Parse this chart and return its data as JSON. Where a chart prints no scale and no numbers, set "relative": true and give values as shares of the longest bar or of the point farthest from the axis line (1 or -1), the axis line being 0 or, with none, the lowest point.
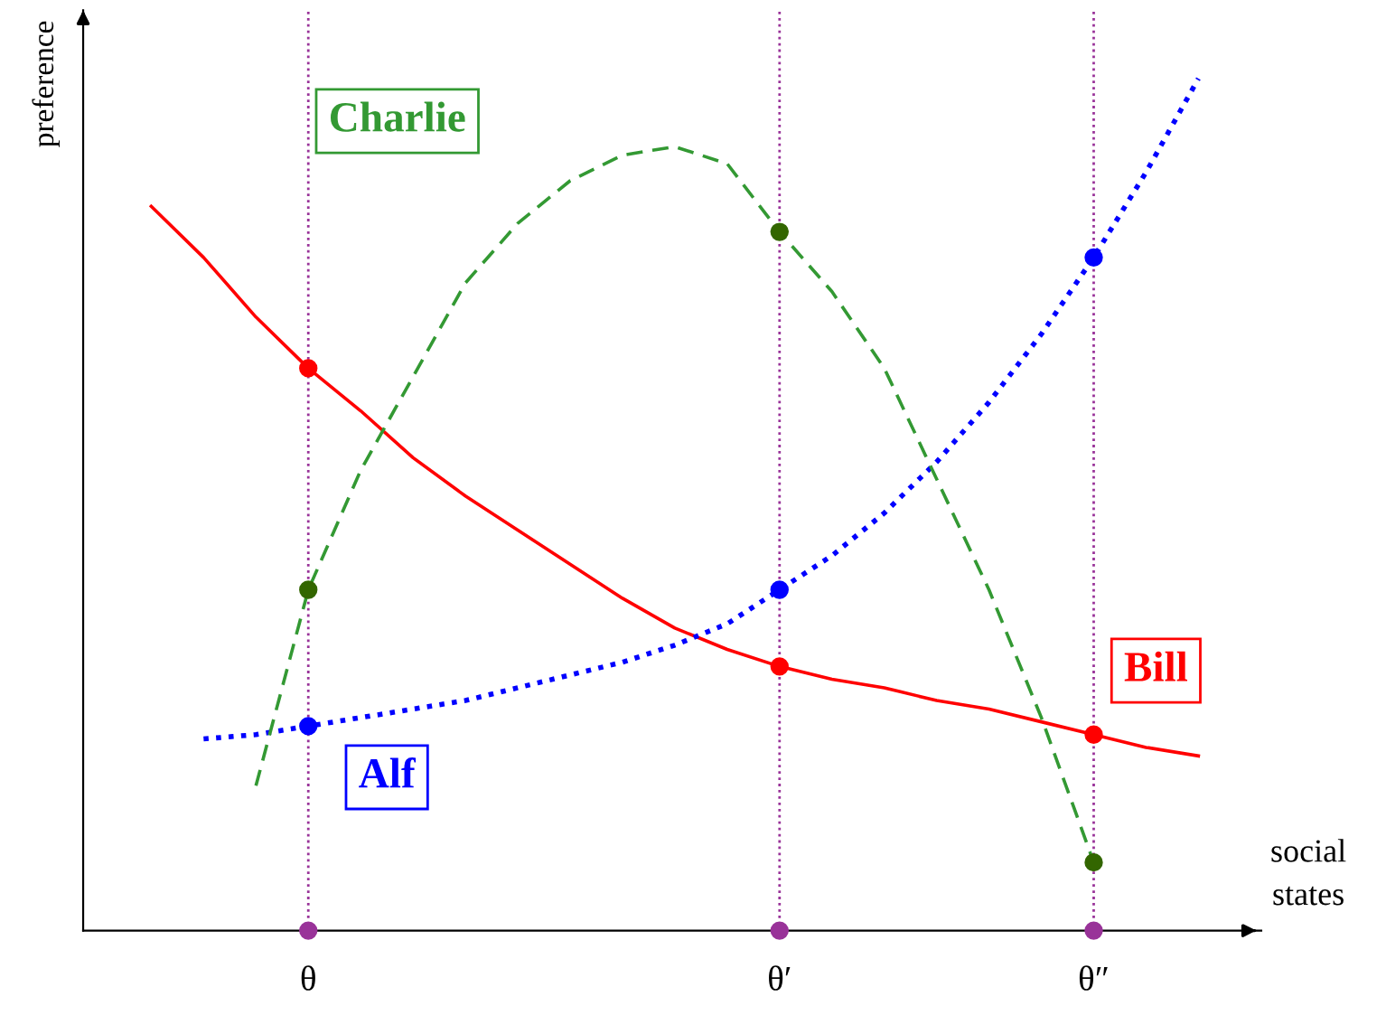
{
  "chart_data": {
    "type": "line",
    "relative": true,
    "ylabel": "preference",
    "xlabel": "social\nstates",
    "categories": [
      null,
      null,
      null,
      null,
      "θ",
      null,
      null,
      null,
      null,
      null,
      null,
      null,
      null,
      "θ′",
      null,
      null,
      null,
      null,
      null,
      "θ″",
      null,
      null
    ],
    "ref_lines": [
      {
        "axis": "x",
        "value": "θ",
        "color": "#993399",
        "line_style": "dotted"
      },
      {
        "axis": "x",
        "value": "θ′",
        "color": "#993399",
        "line_style": "dotted"
      },
      {
        "axis": "x",
        "value": "θ″",
        "color": "#993399",
        "line_style": "dotted"
      }
    ],
    "grid": false,
    "legend": false,
    "marker": "none",
    "series": [
      {
        "name": "Bill",
        "color": "#ff0000",
        "line_style": "solid",
        "values": [
          null,
          0.85,
          0.79,
          0.72,
          0.66,
          0.61,
          0.555,
          0.51,
          0.47,
          0.43,
          0.39,
          0.355,
          0.33,
          0.31,
          0.295,
          0.285,
          0.27,
          0.26,
          0.245,
          0.23,
          0.215,
          0.205
        ]
      },
      {
        "name": "Alf",
        "color": "#0000ff",
        "line_style": "dotted",
        "values": [
          null,
          null,
          0.225,
          0.23,
          0.24,
          0.25,
          0.26,
          0.27,
          0.285,
          0.3,
          0.315,
          0.335,
          0.36,
          0.4,
          0.44,
          0.49,
          0.55,
          0.62,
          0.7,
          0.79,
          0.89,
          1.0
        ]
      },
      {
        "name": "Charlie",
        "color": "#339933",
        "line_style": "dashed",
        "values": [
          null,
          null,
          null,
          0.17,
          0.4,
          0.54,
          0.65,
          0.76,
          0.83,
          0.88,
          0.91,
          0.92,
          0.9,
          0.82,
          0.75,
          0.66,
          0.53,
          0.4,
          0.25,
          0.08,
          null,
          null
        ]
      },
      {
        "type": "scatter",
        "color": "#ff0000",
        "marker": "circle",
        "x": [
          "θ",
          "θ′",
          "θ″"
        ],
        "values": [
          0.66,
          0.31,
          0.23
        ]
      },
      {
        "type": "scatter",
        "color": "#0000ff",
        "marker": "circle",
        "x": [
          "θ",
          "θ′",
          "θ″"
        ],
        "values": [
          0.24,
          0.4,
          0.79
        ]
      },
      {
        "type": "scatter",
        "color": "#336600",
        "marker": "circle",
        "x": [
          "θ",
          "θ′",
          "θ″"
        ],
        "values": [
          0.4,
          0.82,
          0.08
        ]
      },
      {
        "type": "scatter",
        "color": "#993399",
        "marker": "circle",
        "x": [
          "θ",
          "θ′",
          "θ″"
        ],
        "values": [
          0,
          0,
          0
        ]
      }
    ]
  }
}
